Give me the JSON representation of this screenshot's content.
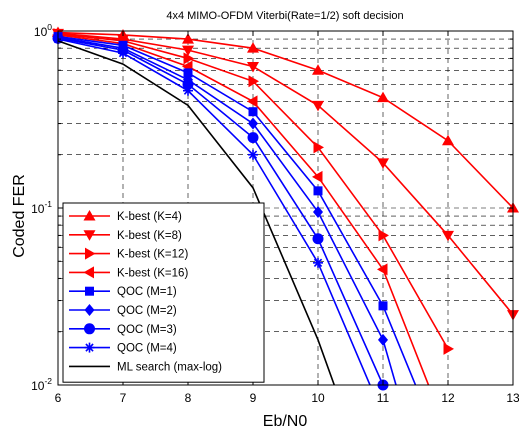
{
  "chart_data": {
    "type": "line",
    "title": "4x4 MIMO-OFDM Viterbi(Rate=1/2) soft decision",
    "xlabel": "Eb/N0",
    "ylabel": "Coded FER",
    "xlim": [
      6,
      13
    ],
    "ylim": [
      0.01,
      1
    ],
    "yscale": "log",
    "grid": true,
    "legend_position": "bottom-left",
    "x_ticks": [
      "6",
      "7",
      "8",
      "9",
      "10",
      "11",
      "12",
      "13"
    ],
    "y_ticks": [
      {
        "base": "10",
        "exp": "0",
        "value": 1
      },
      {
        "base": "10",
        "exp": "-1",
        "value": 0.1
      },
      {
        "base": "10",
        "exp": "-2",
        "value": 0.01
      }
    ],
    "series": [
      {
        "name": "K-best (K=4)",
        "color": "#ff0000",
        "marker": "triangle-up",
        "x": [
          6,
          7,
          8,
          9,
          10,
          11,
          12,
          13
        ],
        "y": [
          0.98,
          0.95,
          0.9,
          0.8,
          0.6,
          0.42,
          0.24,
          0.1
        ]
      },
      {
        "name": "K-best (K=8)",
        "color": "#ff0000",
        "marker": "triangle-down",
        "x": [
          6,
          7,
          8,
          9,
          10,
          11,
          12,
          13
        ],
        "y": [
          0.97,
          0.9,
          0.78,
          0.63,
          0.38,
          0.18,
          0.07,
          0.025
        ]
      },
      {
        "name": "K-best (K=12)",
        "color": "#ff0000",
        "marker": "triangle-right",
        "x": [
          6,
          7,
          8,
          9,
          10,
          11,
          12
        ],
        "y": [
          0.96,
          0.88,
          0.7,
          0.52,
          0.22,
          0.07,
          0.016
        ]
      },
      {
        "name": "K-best (K=16)",
        "color": "#ff0000",
        "marker": "triangle-left",
        "x": [
          6,
          7,
          8,
          9,
          10,
          11,
          11.7
        ],
        "y": [
          0.95,
          0.85,
          0.63,
          0.4,
          0.15,
          0.045,
          0.01
        ]
      },
      {
        "name": "QOC (M=1)",
        "color": "#0000ff",
        "marker": "square",
        "x": [
          6,
          7,
          8,
          9,
          10,
          11,
          11.5
        ],
        "y": [
          0.93,
          0.83,
          0.58,
          0.35,
          0.125,
          0.028,
          0.01
        ]
      },
      {
        "name": "QOC (M=2)",
        "color": "#0000ff",
        "marker": "diamond",
        "x": [
          6,
          7,
          8,
          9,
          10,
          11,
          11.2
        ],
        "y": [
          0.92,
          0.8,
          0.53,
          0.3,
          0.095,
          0.018,
          0.01
        ]
      },
      {
        "name": "QOC (M=3)",
        "color": "#0000ff",
        "marker": "circle",
        "x": [
          6,
          7,
          8,
          9,
          10,
          11
        ],
        "y": [
          0.91,
          0.78,
          0.5,
          0.25,
          0.067,
          0.01
        ]
      },
      {
        "name": "QOC (M=4)",
        "color": "#0000ff",
        "marker": "asterisk",
        "x": [
          6,
          7,
          8,
          9,
          10,
          10.8
        ],
        "y": [
          0.9,
          0.75,
          0.46,
          0.2,
          0.049,
          0.01
        ]
      },
      {
        "name": "ML search (max-log)",
        "color": "#000000",
        "marker": "none",
        "x": [
          6,
          7,
          8,
          9,
          10,
          10.25
        ],
        "y": [
          0.88,
          0.65,
          0.38,
          0.13,
          0.018,
          0.01
        ]
      }
    ]
  }
}
